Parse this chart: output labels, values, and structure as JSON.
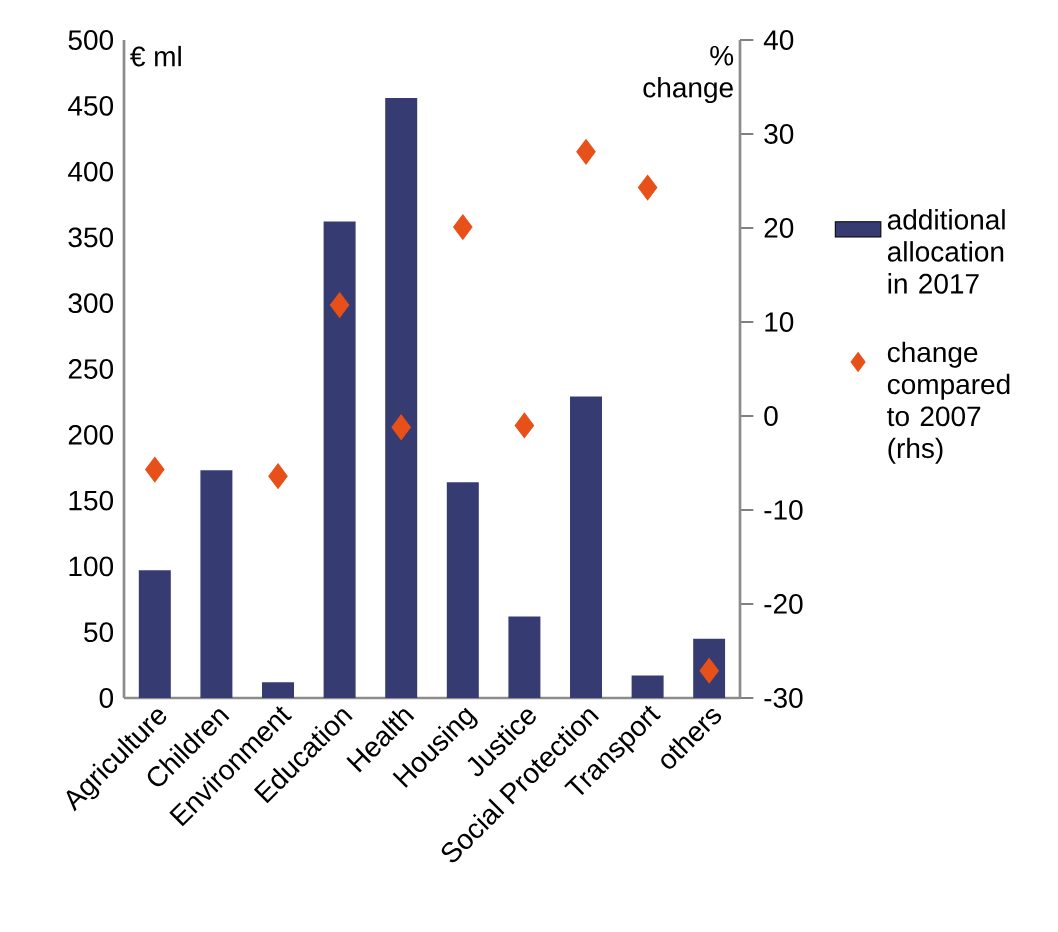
{
  "chart_data": {
    "type": "bar",
    "categories": [
      "Agriculture",
      "Children",
      "Environment",
      "Education",
      "Health",
      "Housing",
      "Justice",
      "Social Protection",
      "Transport",
      "others"
    ],
    "ylabel": "€ ml",
    "y2label": "% change",
    "ylim": [
      0,
      500
    ],
    "yticks": [
      0,
      50,
      100,
      150,
      200,
      250,
      300,
      350,
      400,
      450,
      500
    ],
    "y2lim": [
      -30,
      40
    ],
    "y2ticks": [
      -30,
      -20,
      -10,
      0,
      10,
      20,
      30,
      40
    ],
    "legend": "right",
    "series": [
      {
        "name": "additional allocation in 2017",
        "color": "#363c72",
        "values": [
          97,
          173,
          12,
          362,
          456,
          164,
          62,
          229,
          17,
          45
        ]
      },
      {
        "name": "change compared to 2007 (rhs)",
        "type": "scatter",
        "axis": "y2",
        "marker": "diamond",
        "color": "#e8501a",
        "values": [
          -5.7,
          null,
          -6.4,
          11.8,
          -1.2,
          20.1,
          -1.0,
          28.1,
          24.3,
          -27.1
        ]
      }
    ]
  }
}
